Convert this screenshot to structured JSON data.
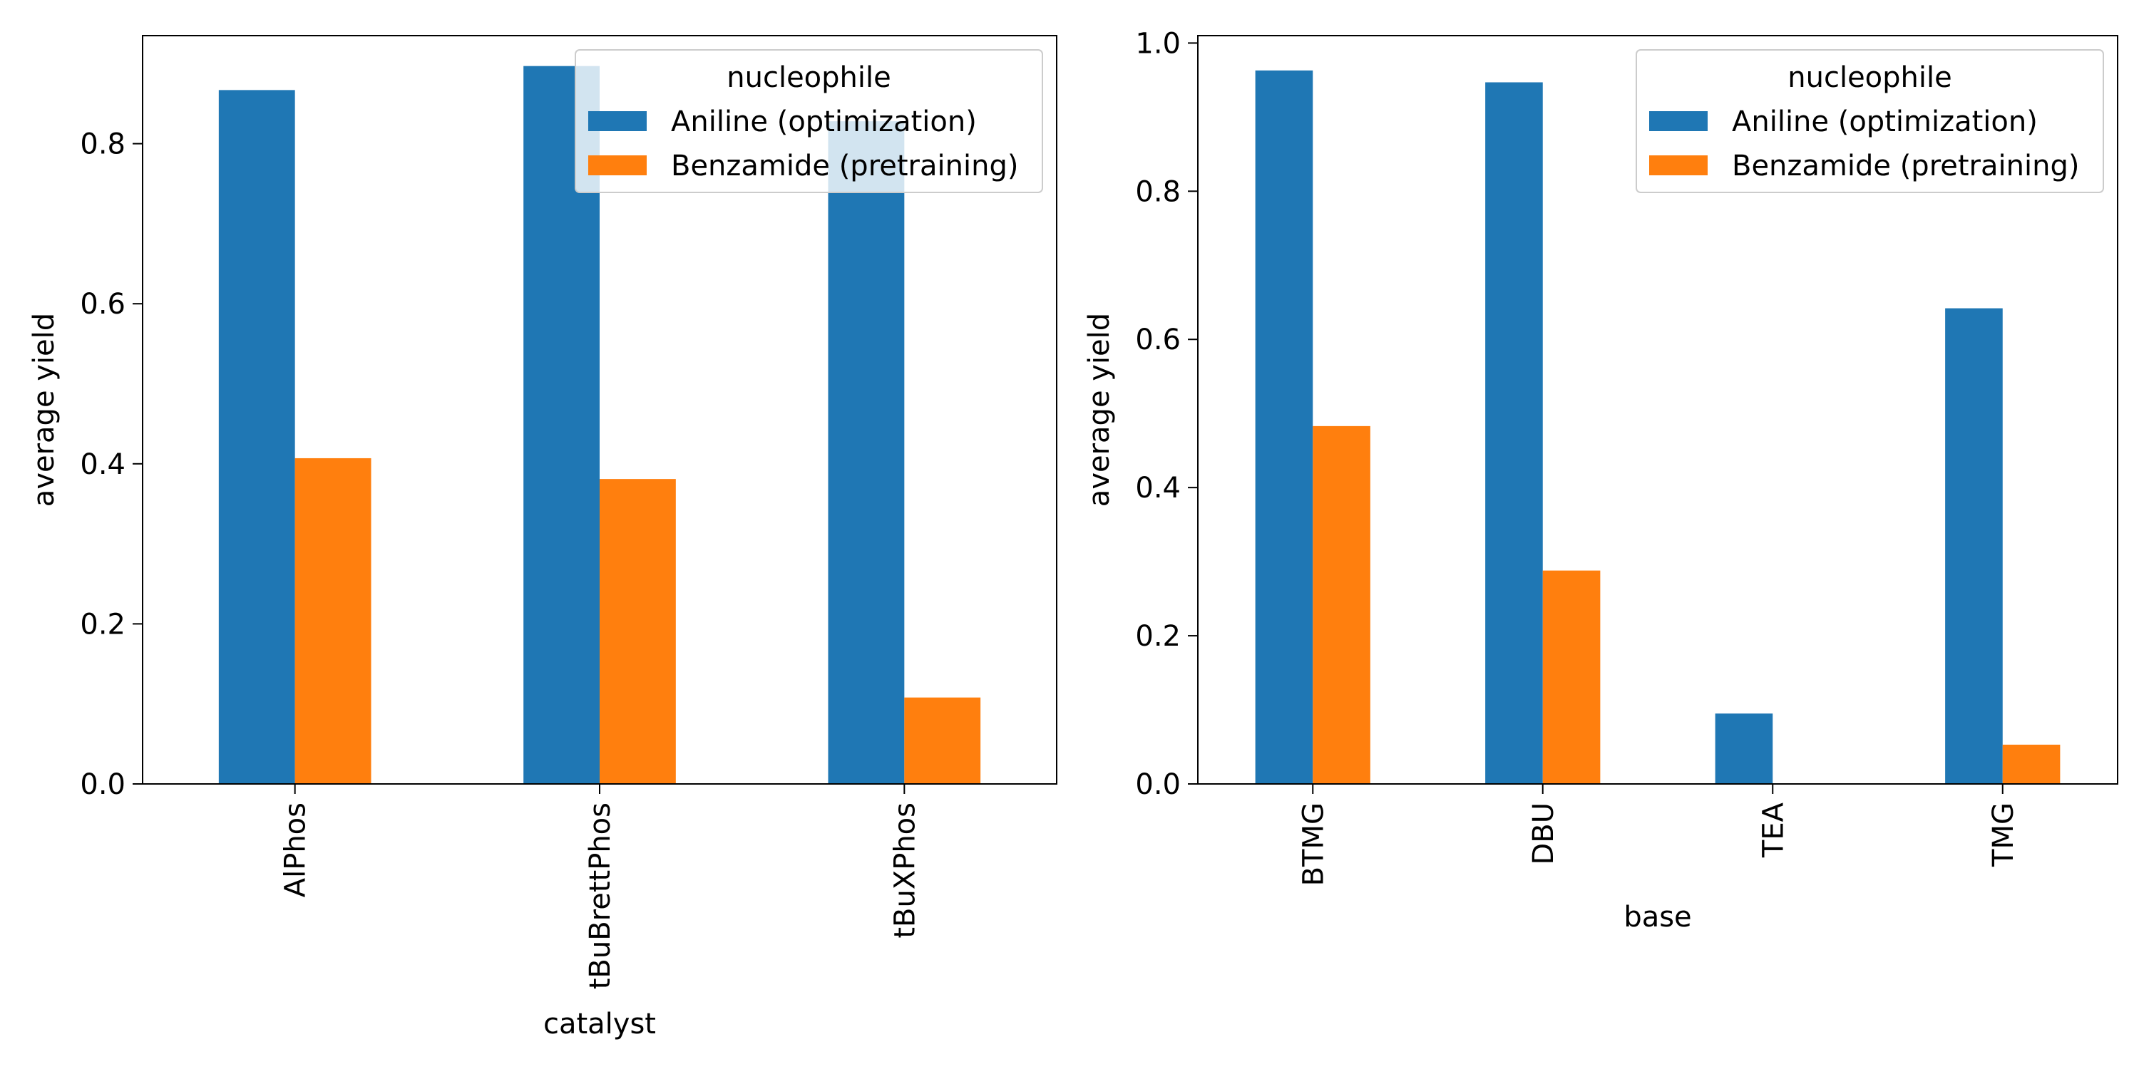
{
  "chart_data": [
    {
      "type": "bar",
      "title": "",
      "xlabel": "catalyst",
      "ylabel": "average yield",
      "categories": [
        "AlPhos",
        "tBuBrettPhos",
        "tBuXPhos"
      ],
      "series": [
        {
          "name": "Aniline (optimization)",
          "color": "#1f77b4",
          "values": [
            0.867,
            0.897,
            0.828
          ]
        },
        {
          "name": "Benzamide (pretraining)",
          "color": "#ff7f0e",
          "values": [
            0.407,
            0.381,
            0.108
          ]
        }
      ],
      "ylim": [
        0,
        0.935
      ],
      "yticks": [
        0.0,
        0.2,
        0.4,
        0.6,
        0.8
      ],
      "ytick_labels": [
        "0.0",
        "0.2",
        "0.4",
        "0.6",
        "0.8"
      ],
      "legend": {
        "title": "nucleophile",
        "placement": "top-right"
      },
      "grid": false
    },
    {
      "type": "bar",
      "title": "",
      "xlabel": "base",
      "ylabel": "average yield",
      "categories": [
        "BTMG",
        "DBU",
        "TEA",
        "TMG"
      ],
      "series": [
        {
          "name": "Aniline (optimization)",
          "color": "#1f77b4",
          "values": [
            0.963,
            0.947,
            0.095,
            0.642
          ]
        },
        {
          "name": "Benzamide (pretraining)",
          "color": "#ff7f0e",
          "values": [
            0.483,
            0.288,
            0.0,
            0.053
          ]
        }
      ],
      "ylim": [
        0,
        1.01
      ],
      "yticks": [
        0.0,
        0.2,
        0.4,
        0.6,
        0.8,
        1.0
      ],
      "ytick_labels": [
        "0.0",
        "0.2",
        "0.4",
        "0.6",
        "0.8",
        "1.0"
      ],
      "legend": {
        "title": "nucleophile",
        "placement": "top-right"
      },
      "grid": false
    }
  ]
}
